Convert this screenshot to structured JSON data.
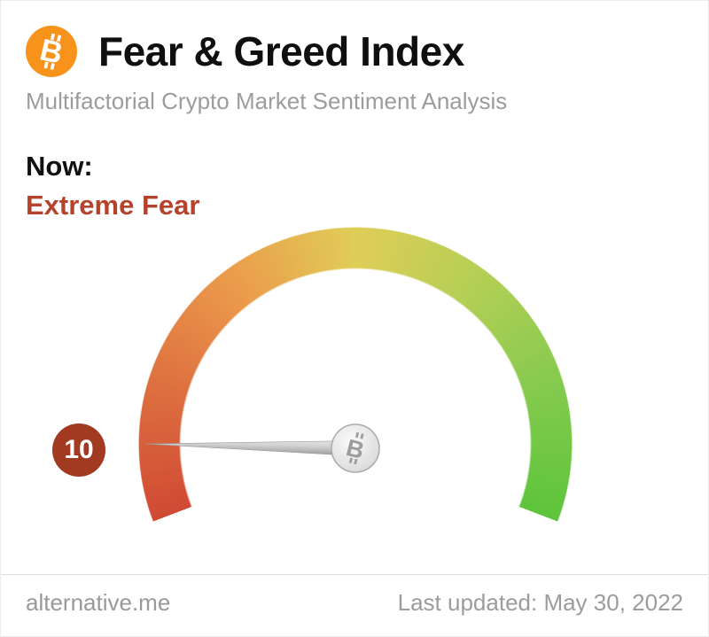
{
  "header": {
    "title": "Fear & Greed Index",
    "subtitle": "Multifactorial Crypto Market Sentiment Analysis",
    "logo": {
      "icon": "bitcoin-icon",
      "color": "#f7931a"
    }
  },
  "status": {
    "now_label": "Now:",
    "value_classification": "Extreme Fear",
    "classification_color": "#b5432c"
  },
  "chart_data": {
    "type": "gauge",
    "value": 10,
    "min": 0,
    "max": 100,
    "value_classification": "Extreme Fear",
    "badge_color": "#a13a20",
    "arc_start_deg": 249,
    "arc_sweep_deg": 222,
    "gradient_colors": [
      "#d04a33",
      "#dd6f40",
      "#eb9b4b",
      "#e0cd58",
      "#b3cf55",
      "#84ca4e",
      "#5dc43a"
    ],
    "needle_color": "#c6c6c6",
    "hub_icon": "bitcoin-icon"
  },
  "footer": {
    "source": "alternative.me",
    "last_updated": "Last updated: May 30, 2022"
  }
}
